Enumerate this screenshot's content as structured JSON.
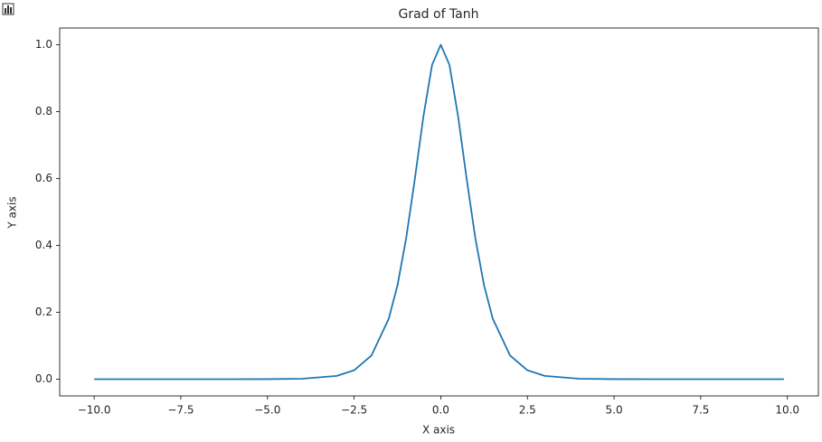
{
  "chart_data": {
    "type": "line",
    "title": "Grad of Tanh",
    "x_label": "X axis",
    "y_label": "Y axis",
    "x": [
      -10,
      -8,
      -6,
      -5,
      -4,
      -3,
      -2.5,
      -2,
      -1.5,
      -1.25,
      -1,
      -0.75,
      -0.5,
      -0.25,
      0,
      0.25,
      0.5,
      0.75,
      1,
      1.25,
      1.5,
      2,
      2.5,
      3,
      4,
      5,
      6,
      8,
      9.9
    ],
    "series": [
      {
        "color": "#1f77b4",
        "values": [
          0,
          0,
          0,
          0.0002,
          0.0013,
          0.0099,
          0.0266,
          0.0707,
          0.181,
          0.28,
          0.42,
          0.597,
          0.786,
          0.94,
          1,
          0.94,
          0.786,
          0.597,
          0.42,
          0.28,
          0.181,
          0.0707,
          0.0266,
          0.0099,
          0.0013,
          0.0002,
          0,
          0,
          0
        ]
      }
    ],
    "xlim": [
      -10.995,
      10.895
    ],
    "ylim": [
      -0.05,
      1.05
    ],
    "xticks": [
      {
        "value": -10,
        "label": "−10.0"
      },
      {
        "value": -7.5,
        "label": "−7.5"
      },
      {
        "value": -5,
        "label": "−5.0"
      },
      {
        "value": -2.5,
        "label": "−2.5"
      },
      {
        "value": 0,
        "label": "0.0"
      },
      {
        "value": 2.5,
        "label": "2.5"
      },
      {
        "value": 5,
        "label": "5.0"
      },
      {
        "value": 7.5,
        "label": "7.5"
      },
      {
        "value": 10,
        "label": "10.0"
      }
    ],
    "yticks": [
      {
        "value": 0,
        "label": "0.0"
      },
      {
        "value": 0.2,
        "label": "0.2"
      },
      {
        "value": 0.4,
        "label": "0.4"
      },
      {
        "value": 0.6,
        "label": "0.6"
      },
      {
        "value": 0.8,
        "label": "0.8"
      },
      {
        "value": 1,
        "label": "1.0"
      }
    ]
  }
}
